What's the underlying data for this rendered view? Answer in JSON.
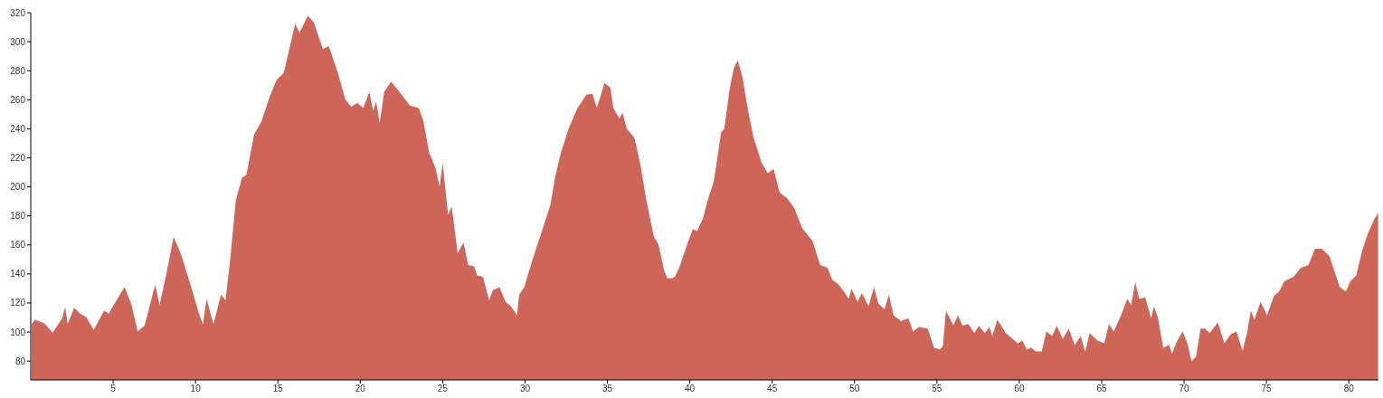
{
  "chart_data": {
    "type": "area",
    "color": "#cd6559",
    "x": [
      0.05,
      0.27,
      0.82,
      1.33,
      1.91,
      2.09,
      2.24,
      2.64,
      3.0,
      3.36,
      3.82,
      4.45,
      4.73,
      5.36,
      5.69,
      6.09,
      6.49,
      6.91,
      7.55,
      7.82,
      8.27,
      8.67,
      9.09,
      9.55,
      9.82,
      10.18,
      10.45,
      10.67,
      11.09,
      11.55,
      11.82,
      12.09,
      12.45,
      12.82,
      13.09,
      13.55,
      14.0,
      14.45,
      14.91,
      15.36,
      16.05,
      16.31,
      16.82,
      17.18,
      17.73,
      18.09,
      18.64,
      19.09,
      19.45,
      19.82,
      20.18,
      20.55,
      20.78,
      20.96,
      21.18,
      21.45,
      21.87,
      22.45,
      23.0,
      23.55,
      23.82,
      24.18,
      24.55,
      24.82,
      25.0,
      25.33,
      25.55,
      25.91,
      26.27,
      26.55,
      26.91,
      27.09,
      27.45,
      27.82,
      28.05,
      28.45,
      28.82,
      29.15,
      29.51,
      29.64,
      29.95,
      30.27,
      30.64,
      31.09,
      31.55,
      31.82,
      32.18,
      32.64,
      33.18,
      33.73,
      34.09,
      34.36,
      34.82,
      35.18,
      35.36,
      35.73,
      35.91,
      36.18,
      36.64,
      37.0,
      37.36,
      37.82,
      38.09,
      38.45,
      38.64,
      38.91,
      39.09,
      39.36,
      39.91,
      40.18,
      40.45,
      40.82,
      41.09,
      41.45,
      41.64,
      41.91,
      42.09,
      42.42,
      42.67,
      42.91,
      43.18,
      43.51,
      43.87,
      44.36,
      44.73,
      45.09,
      45.45,
      45.91,
      46.36,
      46.82,
      47.45,
      47.91,
      48.36,
      48.64,
      49.0,
      49.36,
      49.64,
      49.82,
      50.18,
      50.45,
      50.85,
      51.18,
      51.45,
      51.82,
      52.09,
      52.36,
      52.82,
      53.27,
      53.55,
      53.91,
      54.45,
      54.82,
      55.18,
      55.36,
      55.55,
      56.0,
      56.27,
      56.55,
      56.91,
      57.27,
      57.55,
      57.91,
      58.18,
      58.36,
      58.67,
      59.18,
      59.91,
      60.18,
      60.45,
      60.73,
      61.0,
      61.36,
      61.64,
      62.0,
      62.27,
      62.64,
      63.0,
      63.36,
      63.73,
      64.0,
      64.27,
      64.73,
      65.15,
      65.45,
      65.73,
      66.18,
      66.55,
      66.79,
      67.04,
      67.27,
      67.64,
      68.0,
      68.18,
      68.42,
      68.73,
      69.09,
      69.27,
      69.55,
      69.91,
      70.18,
      70.45,
      70.73,
      71.0,
      71.27,
      71.55,
      72.05,
      72.45,
      72.82,
      73.18,
      73.55,
      73.82,
      74.05,
      74.27,
      74.64,
      75.04,
      75.45,
      75.76,
      76.09,
      76.64,
      77.09,
      77.55,
      77.95,
      78.36,
      78.82,
      79.45,
      79.82,
      80.09,
      80.45,
      80.82,
      81.15,
      81.55,
      81.78
    ],
    "values": [
      105.5,
      108.5,
      106,
      99.5,
      109.5,
      117.3,
      105.5,
      116.7,
      112.6,
      110.5,
      101.4,
      114.6,
      112.6,
      124.8,
      131,
      119.7,
      100.4,
      104.4,
      132.4,
      118.7,
      142.1,
      165.6,
      154.4,
      138,
      127.9,
      113.6,
      105.5,
      122.8,
      105.5,
      125.8,
      121.8,
      148.2,
      191,
      206.3,
      208.3,
      235.9,
      245,
      260.3,
      273.5,
      278.6,
      312.3,
      306.1,
      317.8,
      313.3,
      294.9,
      297,
      278.6,
      260.3,
      255.2,
      257.9,
      254.2,
      265.4,
      252.2,
      258.7,
      244,
      265.4,
      272.5,
      264.4,
      256.2,
      254.2,
      246,
      223.6,
      213.4,
      200.2,
      216.5,
      180.8,
      186.5,
      154.4,
      161.5,
      146.2,
      145.2,
      139,
      138,
      121.8,
      128.9,
      130.9,
      120.7,
      117.7,
      111.6,
      125.8,
      130.9,
      143.1,
      156.4,
      171.7,
      188,
      206.3,
      223.6,
      239.9,
      254.2,
      263.4,
      264,
      254.2,
      271.5,
      268.5,
      254.2,
      247.1,
      251.1,
      239.9,
      233.8,
      215.5,
      191,
      165.6,
      160.5,
      142.1,
      137,
      137,
      138,
      144.2,
      162.6,
      170.7,
      169.6,
      178.8,
      191,
      203.3,
      217.5,
      237.9,
      239.9,
      267.4,
      281.7,
      287.2,
      276.6,
      254.2,
      233.8,
      216.5,
      209.4,
      212.4,
      196.1,
      192.1,
      184.9,
      171.7,
      162.6,
      146.2,
      144.2,
      136,
      133,
      127.9,
      122.8,
      129.9,
      120.7,
      126.8,
      117.7,
      130.9,
      119.7,
      115.6,
      125.8,
      111.6,
      107.5,
      109.5,
      100.4,
      103.4,
      102.4,
      89.2,
      88.1,
      90.2,
      114.6,
      104.4,
      111.6,
      104.4,
      105.5,
      99.3,
      104.4,
      99.3,
      103.4,
      97.3,
      108.5,
      99.3,
      92.2,
      94.2,
      88.1,
      89.2,
      86.7,
      86.7,
      100.4,
      97.3,
      104.4,
      95.2,
      102.4,
      91.2,
      97.3,
      86.1,
      99.3,
      94.2,
      92.2,
      105.5,
      100.4,
      111.6,
      122.8,
      118.7,
      134.4,
      122.8,
      123.8,
      109.5,
      117.7,
      109.5,
      89.2,
      91.2,
      85.1,
      93.2,
      100.4,
      93.2,
      80,
      83,
      102.4,
      102.4,
      99.3,
      106.5,
      92.2,
      98.3,
      100.4,
      87.1,
      99.3,
      114.6,
      108.5,
      120.7,
      111.6,
      124.8,
      127.9,
      135,
      138,
      144.2,
      146.2,
      157.4,
      157.4,
      152.3,
      130.9,
      127.9,
      135,
      139,
      156.4,
      167.6,
      177.8,
      181.9
    ],
    "xlim": [
      0,
      81.8
    ],
    "xticks": [
      5,
      10,
      15,
      20,
      25,
      30,
      35,
      40,
      45,
      50,
      55,
      60,
      65,
      70,
      75,
      80
    ],
    "ylim": [
      67,
      320
    ],
    "yticks": [
      80,
      100,
      120,
      140,
      160,
      180,
      200,
      220,
      240,
      260,
      280,
      300,
      320
    ]
  }
}
